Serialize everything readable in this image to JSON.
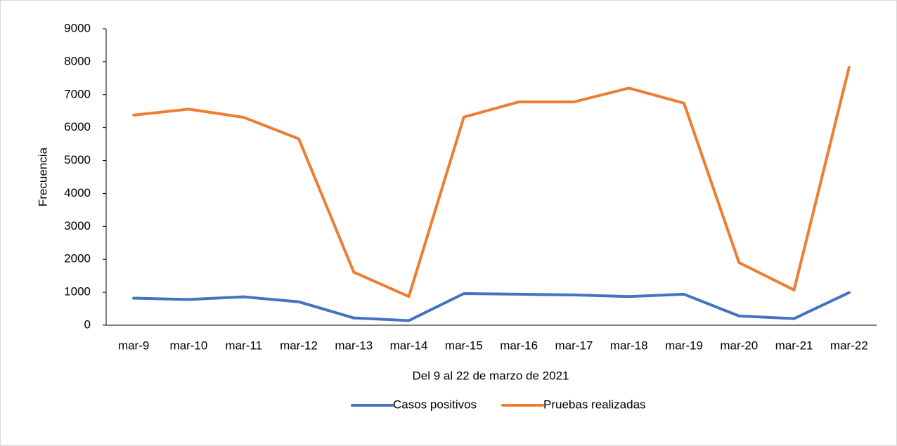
{
  "chart_data": {
    "type": "line",
    "xlabel": "Del 9 al 22 de marzo de 2021",
    "ylabel": "Frecuencia",
    "categories": [
      "mar-9",
      "mar-10",
      "mar-11",
      "mar-12",
      "mar-13",
      "mar-14",
      "mar-15",
      "mar-16",
      "mar-17",
      "mar-18",
      "mar-19",
      "mar-20",
      "mar-21",
      "mar-22"
    ],
    "series": [
      {
        "name": "Casos positivos",
        "color": "#4472c4",
        "values": [
          820,
          780,
          860,
          710,
          220,
          140,
          960,
          940,
          920,
          870,
          940,
          280,
          200,
          990
        ]
      },
      {
        "name": "Pruebas realizadas",
        "color": "#ed7d31",
        "values": [
          6380,
          6560,
          6310,
          5660,
          1610,
          870,
          6320,
          6780,
          6780,
          7200,
          6740,
          1900,
          1070,
          7830
        ]
      }
    ],
    "ylim": [
      0,
      9000
    ],
    "yticks": [
      0,
      1000,
      2000,
      3000,
      4000,
      5000,
      6000,
      7000,
      8000,
      9000
    ],
    "grid": false,
    "legend": "bottom"
  }
}
